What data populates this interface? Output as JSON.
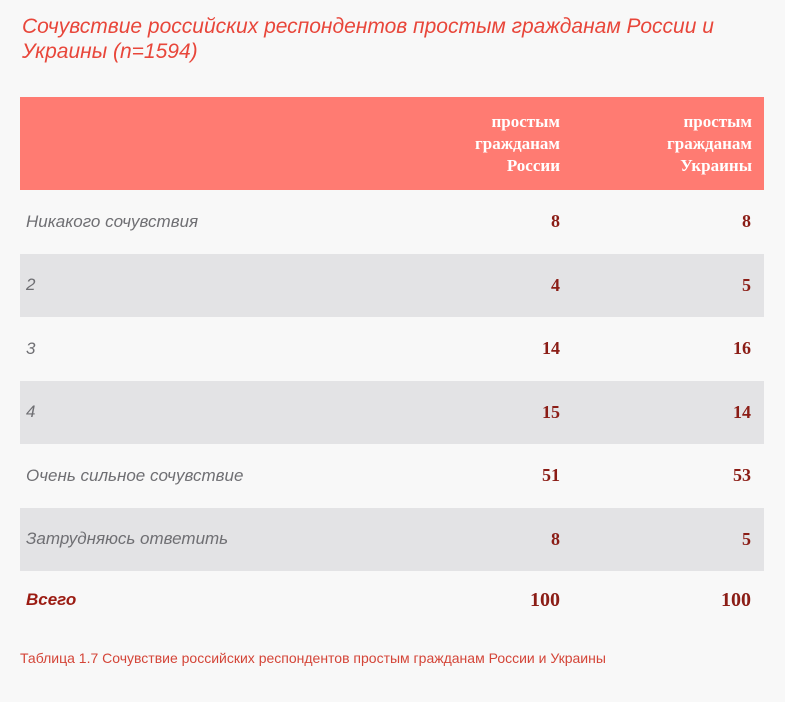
{
  "title": "Сочувствие российских респондентов простым гражданам России и Украины (n=1594)",
  "table": {
    "headers": [
      "",
      [
        "простым",
        "гражданам",
        "России"
      ],
      [
        "простым",
        "гражданам",
        "Украины"
      ]
    ],
    "rows": [
      {
        "label": "Никакого сочувствия",
        "russia": "8",
        "ukraine": "8"
      },
      {
        "label": "2",
        "russia": "4",
        "ukraine": "5"
      },
      {
        "label": "3",
        "russia": "14",
        "ukraine": "16"
      },
      {
        "label": "4",
        "russia": "15",
        "ukraine": "14"
      },
      {
        "label": "Очень сильное сочувствие",
        "russia": "51",
        "ukraine": "53"
      },
      {
        "label": "Затрудняюсь ответить",
        "russia": "8",
        "ukraine": "5"
      }
    ],
    "total": {
      "label": "Всего",
      "russia": "100",
      "ukraine": "100"
    }
  },
  "caption": "Таблица 1.7 Сочувствие российских респондентов простым гражданам России и Украины",
  "colors": {
    "title": "#e8463a",
    "header_bg": "#ff7b72",
    "value_text": "#8b1d16",
    "shaded_row": "#e3e3e5",
    "label_text": "#6f6f73"
  }
}
